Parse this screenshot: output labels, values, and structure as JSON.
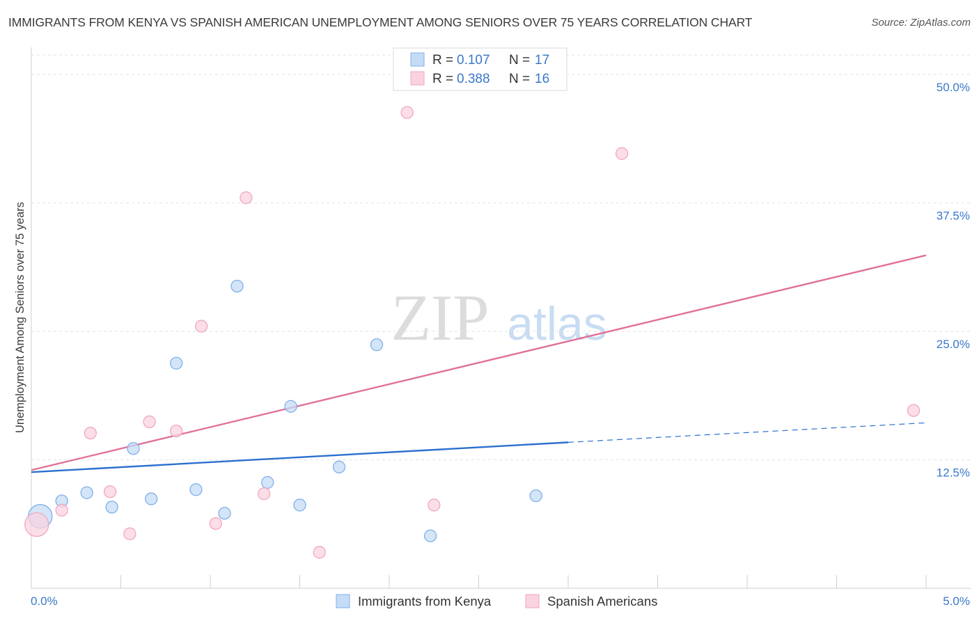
{
  "header": {
    "title": "IMMIGRANTS FROM KENYA VS SPANISH AMERICAN UNEMPLOYMENT AMONG SENIORS OVER 75 YEARS CORRELATION CHART",
    "source": "Source: ZipAtlas.com"
  },
  "watermark": {
    "zip": "ZIP",
    "atlas": "atlas"
  },
  "chart_data": {
    "type": "scatter",
    "title": "IMMIGRANTS FROM KENYA VS SPANISH AMERICAN UNEMPLOYMENT AMONG SENIORS OVER 75 YEARS CORRELATION CHART",
    "xlabel": "",
    "ylabel": "Unemployment Among Seniors over 75 years",
    "xlim": [
      0,
      5
    ],
    "ylim": [
      0,
      52.5
    ],
    "x_tick_labels": {
      "min": "0.0%",
      "max": "5.0%"
    },
    "y_ticks": [
      12.5,
      25.0,
      37.5,
      50.0
    ],
    "y_tick_labels": [
      "12.5%",
      "25.0%",
      "37.5%",
      "50.0%"
    ],
    "grid": true,
    "legend_position": "top-center",
    "series": [
      {
        "name": "Immigrants from Kenya",
        "color": "#7fb0ea",
        "fill": "#c5dcf6",
        "line_color": "#2b6fcf",
        "r_label": "R =",
        "r_value": "0.107",
        "n_label": "N =",
        "n_value": "17",
        "points": [
          {
            "x": 0.05,
            "y": 7.0,
            "big": true
          },
          {
            "x": 0.17,
            "y": 8.5
          },
          {
            "x": 0.31,
            "y": 9.3
          },
          {
            "x": 0.45,
            "y": 7.9
          },
          {
            "x": 0.57,
            "y": 13.6
          },
          {
            "x": 0.67,
            "y": 8.7
          },
          {
            "x": 0.81,
            "y": 21.9
          },
          {
            "x": 0.92,
            "y": 9.6
          },
          {
            "x": 1.08,
            "y": 7.3
          },
          {
            "x": 1.15,
            "y": 29.4
          },
          {
            "x": 1.32,
            "y": 10.3
          },
          {
            "x": 1.45,
            "y": 17.7
          },
          {
            "x": 1.5,
            "y": 8.1
          },
          {
            "x": 1.72,
            "y": 11.8
          },
          {
            "x": 1.93,
            "y": 23.7
          },
          {
            "x": 2.23,
            "y": 5.1
          },
          {
            "x": 2.82,
            "y": 9.0
          }
        ],
        "trend": {
          "x0": 0.0,
          "y0": 11.3,
          "x1": 3.0,
          "y1": 14.2,
          "dash_to_x": 5.0,
          "dash_to_y": 16.1
        }
      },
      {
        "name": "Spanish Americans",
        "color": "#f2a6bf",
        "fill": "#fad3e0",
        "line_color": "#e07098",
        "r_label": "R =",
        "r_value": "0.388",
        "n_label": "N =",
        "n_value": "16",
        "points": [
          {
            "x": 0.03,
            "y": 6.2,
            "big": true
          },
          {
            "x": 0.17,
            "y": 7.6
          },
          {
            "x": 0.33,
            "y": 15.1
          },
          {
            "x": 0.55,
            "y": 5.3
          },
          {
            "x": 0.44,
            "y": 9.4
          },
          {
            "x": 0.66,
            "y": 16.2
          },
          {
            "x": 0.81,
            "y": 15.3
          },
          {
            "x": 0.95,
            "y": 25.5
          },
          {
            "x": 1.03,
            "y": 6.3
          },
          {
            "x": 1.2,
            "y": 38.0
          },
          {
            "x": 1.3,
            "y": 9.2
          },
          {
            "x": 1.61,
            "y": 3.5
          },
          {
            "x": 2.1,
            "y": 46.3
          },
          {
            "x": 2.25,
            "y": 8.1
          },
          {
            "x": 3.3,
            "y": 42.3
          },
          {
            "x": 4.93,
            "y": 17.3
          }
        ],
        "trend": {
          "x0": 0.0,
          "y0": 11.5,
          "x1": 5.0,
          "y1": 32.4
        }
      }
    ]
  }
}
